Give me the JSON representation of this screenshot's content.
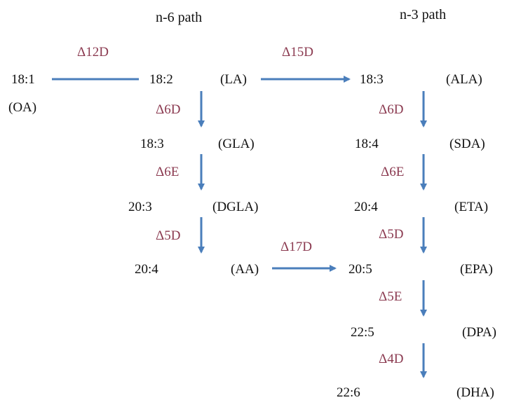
{
  "headers": {
    "n6": "n-6 path",
    "n3": "n-3 path"
  },
  "colors": {
    "arrow": "#4a7ebb",
    "enzyme": "#8b3a50",
    "text": "#111111"
  },
  "oleic": {
    "formula": "18:1",
    "abbr": "(OA)"
  },
  "n6_path": [
    {
      "formula": "18:2",
      "abbr": "(LA)"
    },
    {
      "formula": "18:3",
      "abbr": "(GLA)"
    },
    {
      "formula": "20:3",
      "abbr": "(DGLA)"
    },
    {
      "formula": "20:4",
      "abbr": "(AA)"
    }
  ],
  "n3_path": [
    {
      "formula": "18:3",
      "abbr": "(ALA)"
    },
    {
      "formula": "18:4",
      "abbr": "(SDA)"
    },
    {
      "formula": "20:4",
      "abbr": "(ETA)"
    },
    {
      "formula": "20:5",
      "abbr": "(EPA)"
    },
    {
      "formula": "22:5",
      "abbr": "(DPA)"
    },
    {
      "formula": "22:6",
      "abbr": "(DHA)"
    }
  ],
  "enzymes": {
    "d12d": "Δ12D",
    "d15d": "Δ15D",
    "d17d": "Δ17D",
    "n6_steps": [
      "Δ6D",
      "Δ6E",
      "Δ5D"
    ],
    "n3_steps": [
      "Δ6D",
      "Δ6E",
      "Δ5D",
      "Δ5E",
      "Δ4D"
    ]
  }
}
